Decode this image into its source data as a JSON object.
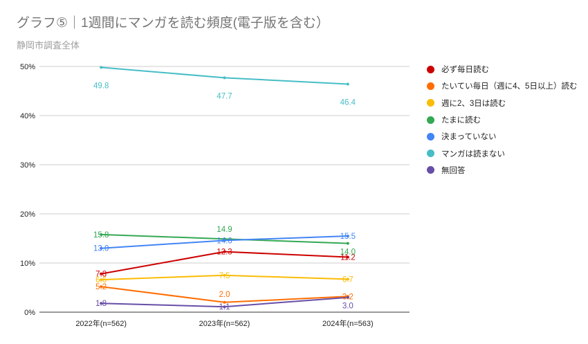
{
  "chart_data": {
    "type": "line",
    "title": "グラフ⑤｜1週間にマンガを読む頻度(電子版を含む）",
    "subtitle": "静岡市調査全体",
    "xlabel": "",
    "ylabel": "",
    "categories": [
      "2022年(n=562)",
      "2023年(n=562)",
      "2024年(n=563)"
    ],
    "ylim": [
      0,
      50
    ],
    "yticks": [
      0,
      10,
      20,
      30,
      40,
      50
    ],
    "ytick_labels": [
      "0%",
      "10%",
      "20%",
      "30%",
      "40%",
      "50%"
    ],
    "grid": true,
    "legend_position": "right",
    "series": [
      {
        "name": "必ず毎日読む",
        "color": "#cc0000",
        "values": [
          7.8,
          12.3,
          11.2
        ]
      },
      {
        "name": "たいてい毎日（週に4、5日以上）読む",
        "color": "#ff6d01",
        "values": [
          5.2,
          2.0,
          3.2
        ]
      },
      {
        "name": "週に2、3日は読む",
        "color": "#fbbc04",
        "values": [
          6.6,
          7.5,
          6.7
        ]
      },
      {
        "name": "たまに読む",
        "color": "#34a853",
        "values": [
          15.8,
          14.9,
          14.0
        ]
      },
      {
        "name": "決まっていない",
        "color": "#4285f4",
        "values": [
          13.0,
          14.6,
          15.5
        ]
      },
      {
        "name": "マンガは読まない",
        "color": "#46bdc6",
        "values": [
          49.8,
          47.7,
          46.4
        ]
      },
      {
        "name": "無回答",
        "color": "#674ea7",
        "values": [
          1.8,
          1.1,
          3.0
        ]
      }
    ]
  }
}
